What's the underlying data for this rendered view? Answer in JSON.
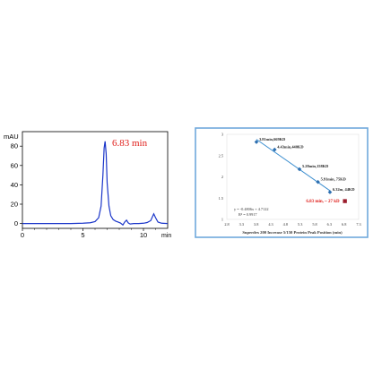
{
  "chart_data": [
    {
      "type": "line",
      "title": "",
      "ylabel": "mAU",
      "xlabel": "min",
      "xlim": [
        0,
        12
      ],
      "ylim": [
        -5,
        95
      ],
      "yticks": [
        "0",
        "20",
        "40",
        "60",
        "80"
      ],
      "xticks": [
        "0",
        "5",
        "10"
      ],
      "annotation": "6.83 min",
      "series": [
        {
          "color": "#1a35c9",
          "x": [
            0,
            1,
            2,
            3,
            4,
            5,
            5.6,
            6.0,
            6.3,
            6.5,
            6.65,
            6.75,
            6.83,
            6.92,
            7.0,
            7.15,
            7.3,
            7.5,
            7.7,
            7.9,
            8.1,
            8.3,
            8.45,
            8.6,
            8.75,
            8.9,
            9.2,
            9.6,
            10.0,
            10.3,
            10.6,
            10.85,
            11.0,
            11.2,
            11.5,
            12
          ],
          "y": [
            0,
            0,
            0,
            0,
            0,
            0.3,
            0.8,
            2,
            6,
            18,
            50,
            78,
            85,
            72,
            42,
            18,
            8,
            4,
            2.5,
            1.5,
            0.5,
            -1.5,
            1.5,
            3.5,
            0.5,
            -0.5,
            0,
            0,
            0.3,
            1,
            3,
            10,
            6,
            1.5,
            0.3,
            0
          ]
        }
      ]
    },
    {
      "type": "scatter",
      "title": "",
      "xlabel": "Superdex 200 Increase 5/150  Protein Peak Position (min)",
      "ylabel": "",
      "xlim": [
        2.8,
        7.3
      ],
      "ylim": [
        1,
        3
      ],
      "xticks": [
        "2.8",
        "3.3",
        "3.8",
        "4.3",
        "4.8",
        "5.3",
        "5.8",
        "6.3",
        "6.8",
        "7.3"
      ],
      "yticks": [
        "1",
        "1.5",
        "2",
        "2.5",
        "3"
      ],
      "equation": "y = -0.4806x + 4.7122",
      "r2": "R² = 0.9917",
      "trendline": {
        "slope": -0.4806,
        "intercept": 4.7122,
        "x_range": [
          3.81,
          6.32
        ]
      },
      "points": [
        {
          "x": 3.81,
          "y": 2.82,
          "label": "3.81min,669KD",
          "color": "#2e6fb0"
        },
        {
          "x": 4.43,
          "y": 2.64,
          "label": "4.43min,440KD",
          "color": "#2e6fb0"
        },
        {
          "x": 5.28,
          "y": 2.18,
          "label": "5.28min,158KD",
          "color": "#2e6fb0"
        },
        {
          "x": 5.91,
          "y": 1.88,
          "label": "5.91min, 75KD",
          "color": "#2e6fb0"
        },
        {
          "x": 6.32,
          "y": 1.64,
          "label": "6.32m, 44KD",
          "color": "#2e6fb0"
        },
        {
          "x": 6.83,
          "y": 1.43,
          "label": "6.83 min, ~ 27 kD",
          "color": "#9b1c2c"
        }
      ]
    }
  ]
}
